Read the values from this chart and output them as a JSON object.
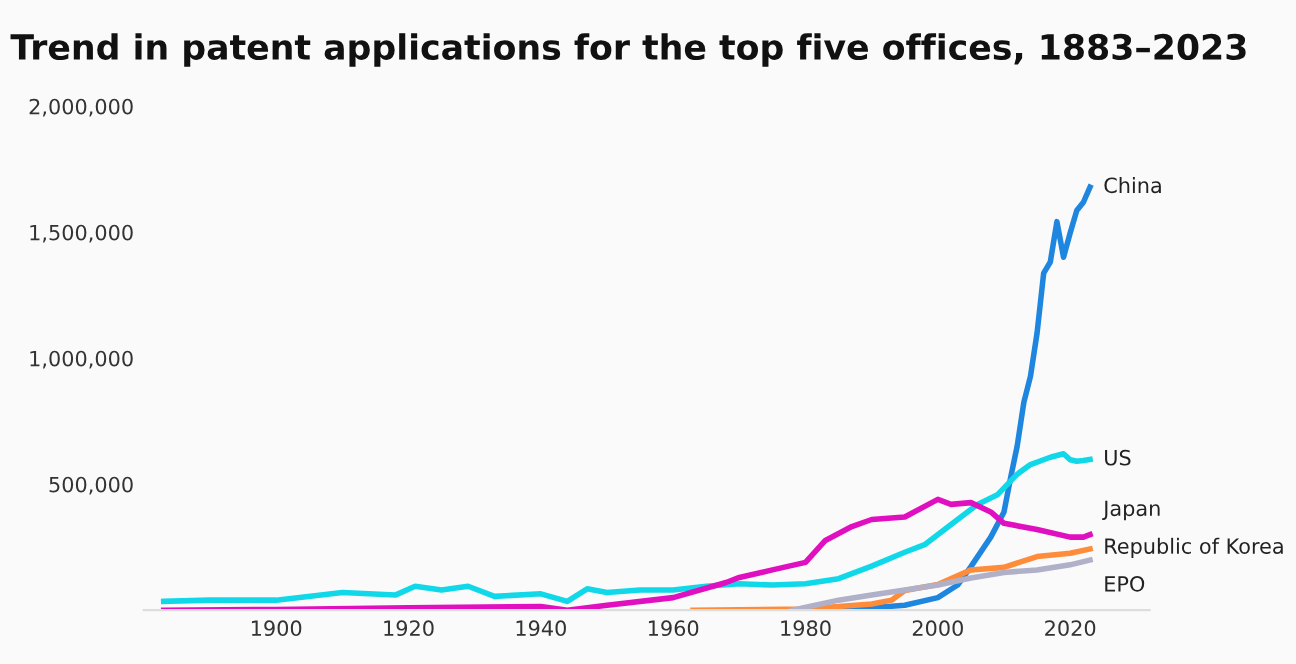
{
  "chart_data": {
    "type": "line",
    "title": "Trend in patent applications for the top five offices, 1883–2023",
    "xlim": [
      1880,
      2032
    ],
    "xticks": [
      1900,
      1920,
      1940,
      1960,
      1980,
      2000,
      2020
    ],
    "ylim": [
      0,
      2000000
    ],
    "yticks": [
      {
        "value": 500000,
        "label": "500,000"
      },
      {
        "value": 1000000,
        "label": "1,000,000"
      },
      {
        "value": 1500000,
        "label": "1,500,000"
      },
      {
        "value": 2000000,
        "label": "2,000,000"
      }
    ],
    "grid": false,
    "legend": false,
    "marker": "none",
    "line_style": "solid",
    "series": [
      {
        "name": "China",
        "color": "#1f86e0",
        "x": [
          1985,
          1990,
          1995,
          2000,
          2003,
          2005,
          2008,
          2010,
          2011,
          2012,
          2013,
          2014,
          2015,
          2016,
          2017,
          2018,
          2019,
          2020,
          2021,
          2022,
          2023
        ],
        "values": [
          0,
          10000,
          20000,
          50000,
          100000,
          173000,
          290000,
          390000,
          526000,
          652000,
          825000,
          928000,
          1100000,
          1338000,
          1382000,
          1542000,
          1401000,
          1497000,
          1586000,
          1619000,
          1679000
        ]
      },
      {
        "name": "US",
        "color": "#10d8e8",
        "x": [
          1883,
          1890,
          1900,
          1910,
          1918,
          1921,
          1925,
          1929,
          1933,
          1940,
          1944,
          1947,
          1950,
          1955,
          1960,
          1965,
          1970,
          1975,
          1980,
          1985,
          1990,
          1995,
          1998,
          2002,
          2006,
          2009,
          2012,
          2014,
          2017,
          2019,
          2020,
          2021,
          2022,
          2023
        ],
        "values": [
          35000,
          40000,
          40000,
          70000,
          60000,
          95000,
          80000,
          95000,
          55000,
          65000,
          35000,
          85000,
          70000,
          80000,
          80000,
          95000,
          105000,
          100000,
          105000,
          125000,
          175000,
          230000,
          260000,
          340000,
          420000,
          458000,
          540000,
          578000,
          607000,
          621000,
          597000,
          591000,
          594000,
          598000
        ]
      },
      {
        "name": "Japan",
        "color": "#e010c0",
        "x": [
          1883,
          1900,
          1920,
          1940,
          1944,
          1950,
          1960,
          1968,
          1970,
          1975,
          1980,
          1983,
          1987,
          1990,
          1995,
          2000,
          2002,
          2005,
          2008,
          2010,
          2015,
          2020,
          2022,
          2023
        ],
        "values": [
          0,
          3000,
          10000,
          15000,
          0,
          20000,
          50000,
          110000,
          130000,
          160000,
          190000,
          277000,
          332000,
          360000,
          370000,
          440000,
          420000,
          427000,
          390000,
          345000,
          320000,
          290000,
          290000,
          300000
        ]
      },
      {
        "name": "Republic of Korea",
        "color": "#ff8c3a",
        "x": [
          1963,
          1970,
          1980,
          1990,
          1993,
          1995,
          2000,
          2005,
          2010,
          2015,
          2020,
          2023
        ],
        "values": [
          0,
          2000,
          5000,
          25000,
          40000,
          78000,
          102000,
          160000,
          170000,
          213000,
          226000,
          243000
        ]
      },
      {
        "name": "EPO",
        "color": "#b0b0c8",
        "x": [
          1978,
          1985,
          1990,
          2000,
          2005,
          2010,
          2015,
          2020,
          2023
        ],
        "values": [
          0,
          40000,
          60000,
          100000,
          128000,
          150000,
          160000,
          180000,
          199000
        ]
      }
    ]
  }
}
